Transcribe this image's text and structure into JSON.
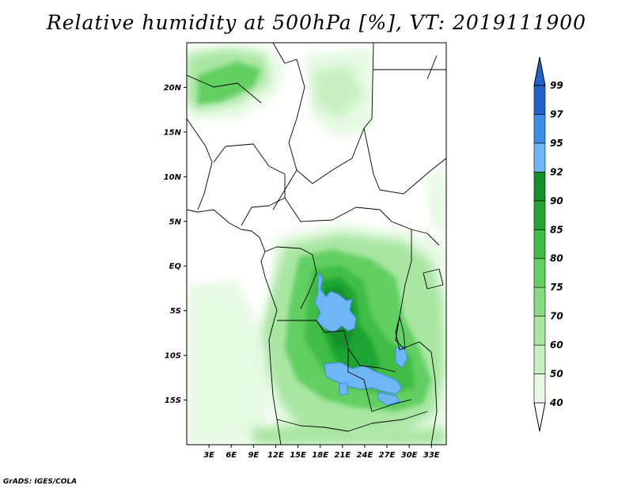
{
  "title": "Relative humidity at 500hPa [%], VT: 2019111900",
  "credit": "GrADS: IGES/COLA",
  "map": {
    "lon_range": [
      0,
      35
    ],
    "lat_range": [
      -20,
      25
    ],
    "lon_ticks": [
      "3E",
      "6E",
      "9E",
      "12E",
      "15E",
      "18E",
      "21E",
      "24E",
      "27E",
      "30E",
      "33E"
    ],
    "lat_ticks": [
      "20N",
      "15N",
      "10N",
      "5N",
      "EQ",
      "5S",
      "10S",
      "15S"
    ]
  },
  "colorbar": {
    "labels": [
      "40",
      "50",
      "60",
      "70",
      "75",
      "80",
      "85",
      "90",
      "92",
      "95",
      "97",
      "99"
    ],
    "colors": [
      "#ffffff",
      "#e6f9e3",
      "#c8f0c3",
      "#a8e6a2",
      "#86db82",
      "#62cf62",
      "#3fbd45",
      "#1fa530",
      "#12902a",
      "#6fb6f5",
      "#3d8ee8",
      "#1f62cc"
    ]
  }
}
